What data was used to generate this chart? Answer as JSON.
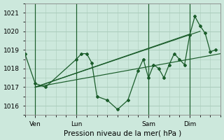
{
  "bg_color": "#cce8dc",
  "grid_color": "#aaccbb",
  "line_color": "#1a5c2a",
  "ylim": [
    1015.5,
    1021.5
  ],
  "yticks": [
    1016,
    1017,
    1018,
    1019,
    1020,
    1021
  ],
  "xlabel": "Pression niveau de la mer( hPa )",
  "xtick_labels": [
    "Ven",
    "Lun",
    "Sam",
    "Dim"
  ],
  "xtick_positions": [
    2,
    10,
    24,
    32
  ],
  "vline_positions": [
    2,
    10,
    24,
    32
  ],
  "xlim": [
    0,
    38
  ],
  "series_zigzag_x": [
    0,
    2,
    4,
    10,
    11,
    12,
    13,
    14,
    16,
    18,
    20,
    22,
    23,
    24,
    25,
    26,
    27,
    28,
    29,
    30,
    31,
    32,
    33,
    34,
    35,
    36,
    37
  ],
  "series_zigzag_y": [
    1018.8,
    1017.2,
    1017.0,
    1018.5,
    1018.8,
    1018.8,
    1018.3,
    1016.5,
    1016.3,
    1015.8,
    1016.3,
    1017.9,
    1018.5,
    1017.5,
    1018.2,
    1018.0,
    1017.5,
    1018.2,
    1018.8,
    1018.5,
    1018.2,
    1019.8,
    1020.8,
    1020.3,
    1019.9,
    1018.9,
    1019.0
  ],
  "trend1_x": [
    2,
    38
  ],
  "trend1_y": [
    1017.0,
    1018.8
  ],
  "trend2_x": [
    2,
    32
  ],
  "trend2_y": [
    1017.0,
    1019.85
  ],
  "trend3_x": [
    2,
    34
  ],
  "trend3_y": [
    1017.0,
    1020.0
  ]
}
